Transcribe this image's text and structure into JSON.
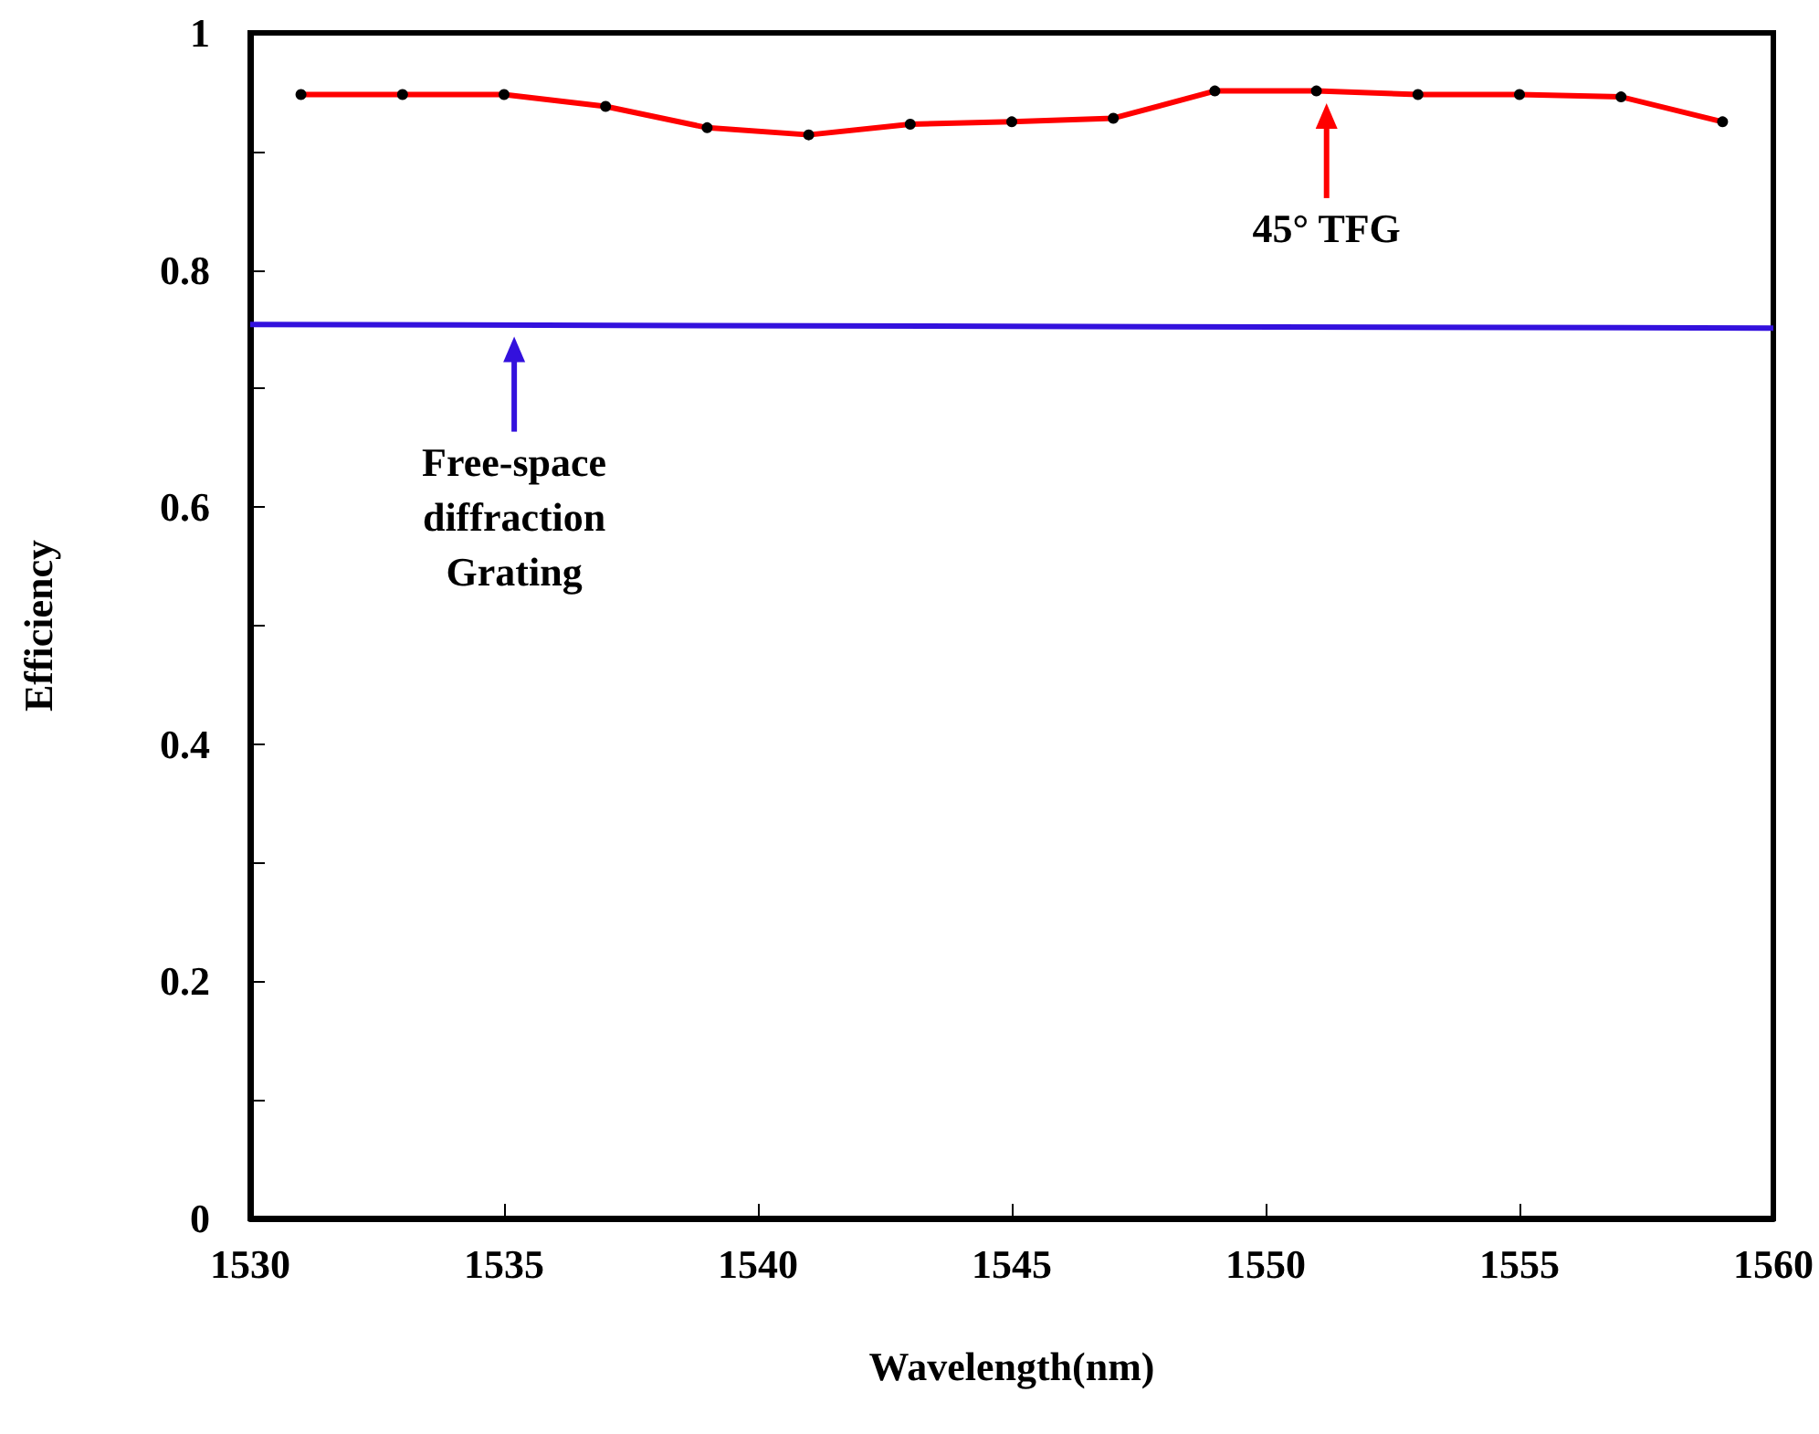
{
  "chart_data": {
    "type": "line",
    "xlabel": "Wavelength(nm)",
    "ylabel": "Efficiency",
    "xlim": [
      1530,
      1560
    ],
    "xticks": [
      1530,
      1535,
      1540,
      1545,
      1550,
      1555,
      1560
    ],
    "ylim": [
      0,
      1
    ],
    "yticks": [
      0,
      {
        "value": 0.1,
        "label": null
      },
      0.2,
      {
        "value": 0.3,
        "label": null
      },
      0.4,
      {
        "value": 0.5,
        "label": null
      },
      0.6,
      {
        "value": 0.7,
        "label": null
      },
      0.8,
      {
        "value": 0.9,
        "label": null
      },
      1
    ],
    "grid": false,
    "series": [
      {
        "color": "#ff0000",
        "marker": "circle",
        "x": [
          1531,
          1533,
          1535,
          1537,
          1539,
          1541,
          1543,
          1545,
          1547,
          1549,
          1551,
          1553,
          1555,
          1557,
          1559
        ],
        "values": [
          0.948,
          0.948,
          0.948,
          0.938,
          0.92,
          0.914,
          0.923,
          0.925,
          0.928,
          0.951,
          0.951,
          0.948,
          0.948,
          0.946,
          0.925
        ]
      },
      {
        "color": "#3311dd",
        "marker": "none",
        "x": [
          1530,
          1560
        ],
        "values": [
          0.754,
          0.751
        ]
      }
    ],
    "annotations": [
      {
        "text": "45° TFG",
        "x": 1551.2,
        "y": 0.95
      },
      {
        "text": "Free-space\ndiffraction\nGrating",
        "x": 1535.2,
        "y": 0.753
      }
    ]
  }
}
